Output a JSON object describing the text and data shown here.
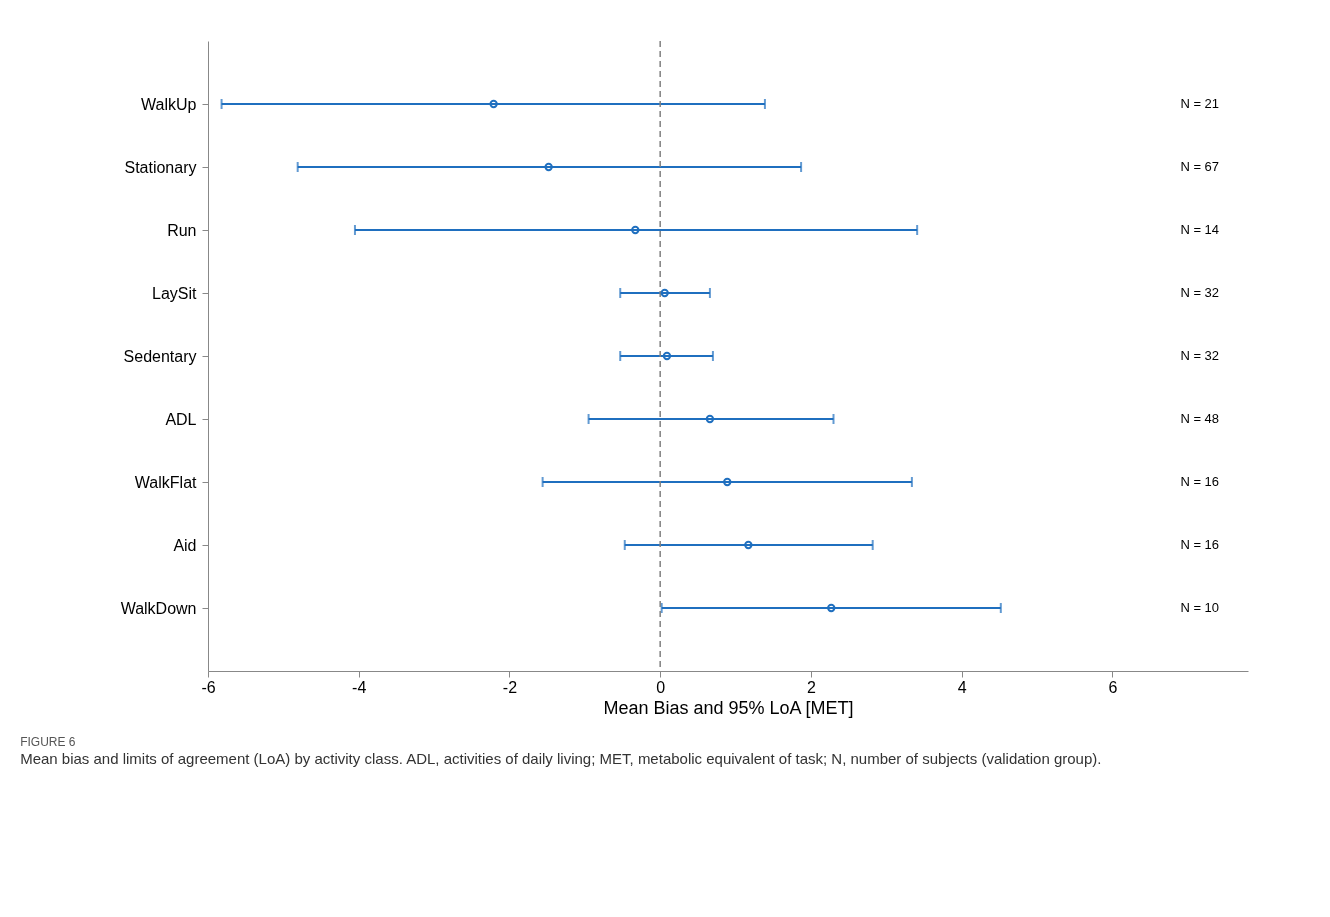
{
  "chart_data": {
    "type": "scatter",
    "orientation": "horizontal",
    "title": "FIGURE 6",
    "subtitle": "Mean bias and limits of agreement (LoA) by activity class. ADL, activities of daily living; MET, metabolic equivalent of task; N, number of subjects (validation group).",
    "xlabel": "Mean Bias and 95% LoA [MET]",
    "categories": [
      "WalkUp",
      "Stationary",
      "Run",
      "LaySit",
      "Sedentary",
      "ADL",
      "WalkFlat",
      "Aid",
      "WalkDown"
    ],
    "values": [
      -2.21,
      -1.48,
      -0.33,
      0.06,
      0.09,
      0.66,
      0.89,
      1.17,
      2.27
    ],
    "errors": [
      [
        -5.82,
        1.39
      ],
      [
        -4.81,
        1.87
      ],
      [
        -4.05,
        3.41
      ],
      [
        -0.53,
        0.66
      ],
      [
        -0.53,
        0.7
      ],
      [
        -0.95,
        2.3
      ],
      [
        -1.56,
        3.34
      ],
      [
        -0.47,
        2.82
      ],
      [
        0.02,
        4.52
      ]
    ],
    "color": "#1f6fbf",
    "marker": "circle",
    "grid": false,
    "xlim": [
      -6,
      7.8
    ],
    "xticks": [
      -6,
      -4,
      -2,
      0,
      2,
      4,
      6
    ],
    "ref_lines": [
      {
        "axis": "x",
        "value": 0,
        "color": "#808080",
        "line_style": "dashed"
      }
    ],
    "annotations": [
      "N = 21",
      "N = 67",
      "N = 14",
      "N = 32",
      "N = 32",
      "N = 48",
      "N = 16",
      "N = 16",
      "N = 10"
    ]
  }
}
